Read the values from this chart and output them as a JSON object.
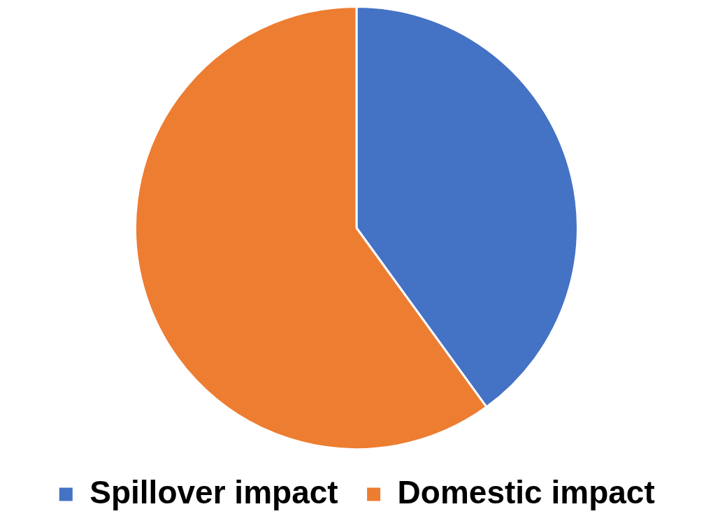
{
  "chart_data": {
    "type": "pie",
    "categories": [
      "Spillover impact",
      "Domestic impact"
    ],
    "values": [
      40,
      60
    ],
    "colors": [
      "#4472c4",
      "#ed7d31"
    ],
    "legend": "bottom"
  }
}
